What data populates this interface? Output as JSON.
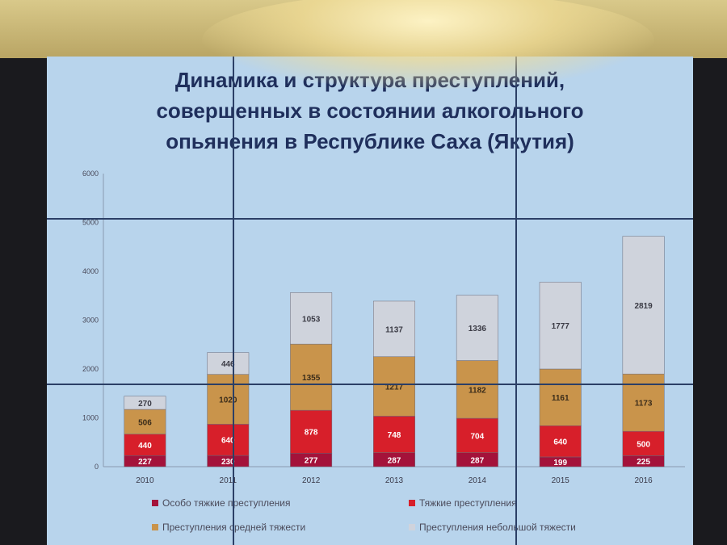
{
  "slide": {
    "title_lines": [
      "Динамика и структура преступлений,",
      "совершенных в состоянии алкогольного",
      "опьянения в Республике Саха (Якутия)"
    ]
  },
  "colors": {
    "особо_тяжкие": "#a4123a",
    "тяжкие": "#d71f2a",
    "средней": "#c9944b",
    "небольшой": "#cfd3dc"
  },
  "chart_data": {
    "type": "bar",
    "stacked": true,
    "title": "",
    "xlabel": "",
    "ylabel": "",
    "ylim": [
      0,
      6000
    ],
    "yticks": [
      0,
      1000,
      2000,
      3000,
      4000,
      5000,
      6000
    ],
    "categories": [
      "2010",
      "2011",
      "2012",
      "2013",
      "2014",
      "2015",
      "2016"
    ],
    "series": [
      {
        "name": "Особо тяжкие преступления",
        "values": [
          227,
          230,
          277,
          287,
          287,
          199,
          225
        ]
      },
      {
        "name": "Тяжкие преступления",
        "values": [
          440,
          640,
          878,
          748,
          704,
          640,
          500
        ]
      },
      {
        "name": "Преступления средней тяжести",
        "values": [
          506,
          1020,
          1355,
          1217,
          1182,
          1161,
          1173
        ]
      },
      {
        "name": "Преступления небольшой тяжести",
        "values": [
          270,
          446,
          1053,
          1137,
          1336,
          1777,
          2819
        ]
      }
    ],
    "legend_position": "bottom",
    "grid": false
  }
}
